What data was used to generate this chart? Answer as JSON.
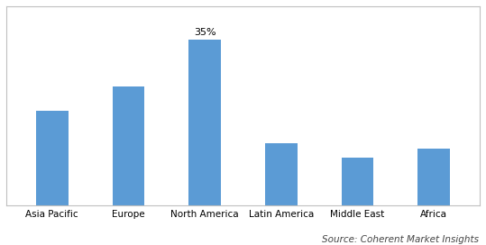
{
  "categories": [
    "Asia Pacific",
    "Europe",
    "North America",
    "Latin America",
    "Middle East",
    "Africa"
  ],
  "values": [
    20,
    25,
    35,
    13,
    10,
    12
  ],
  "bar_color": "#5b9bd5",
  "annotated_bar_index": 2,
  "annotation_text": "35%",
  "annotation_fontsize": 8,
  "source_text": "Source: Coherent Market Insights",
  "source_fontsize": 7.5,
  "ylim": [
    0,
    42
  ],
  "bar_width": 0.42,
  "figsize": [
    5.39,
    2.72
  ],
  "dpi": 100,
  "tick_fontsize": 7.5,
  "bg_color": "#ffffff",
  "border_color": "#c0c0c0",
  "source_color": "#444444"
}
